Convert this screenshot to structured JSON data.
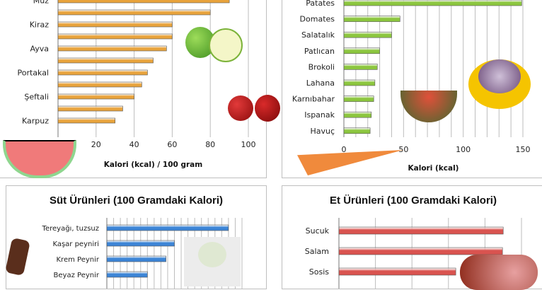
{
  "chart_data": [
    {
      "type": "bar",
      "orientation": "horizontal",
      "categories": [
        "Muz",
        "",
        "Kiraz",
        "",
        "Ayva",
        "",
        "Portakal",
        "",
        "Şeftali",
        "",
        "Karpuz"
      ],
      "values": [
        90,
        80,
        60,
        60,
        57,
        50,
        47,
        44,
        40,
        34,
        30
      ],
      "xlabel": "Kalori (kcal)  / 100 gram",
      "xlim": [
        0,
        100
      ],
      "xticks": [
        "20",
        "40",
        "60",
        "80",
        "100"
      ],
      "grid": true,
      "color": "#e8a33c"
    },
    {
      "type": "bar",
      "orientation": "horizontal",
      "categories": [
        "Patates",
        "Domates",
        "Salatalık",
        "Patlıcan",
        "Brokoli",
        "Lahana",
        "Karnıbahar",
        "Ispanak",
        "Havuç"
      ],
      "values": [
        149,
        47,
        40,
        30,
        28,
        26,
        25,
        23,
        22
      ],
      "xlabel": "Kalori (kcal)",
      "xlim": [
        0,
        150
      ],
      "xticks": [
        "0",
        "50",
        "100",
        "150"
      ],
      "grid": true,
      "color": "#8cc63f"
    },
    {
      "type": "bar",
      "orientation": "horizontal",
      "title": "Süt Ürünleri (100 Gramdaki Kalori)",
      "categories": [
        "Tereyağı, tuzsuz",
        "Kaşar peyniri",
        "Krem Peynir",
        "Beyaz Peynir"
      ],
      "values": [
        720,
        400,
        350,
        240
      ],
      "xlim": [
        0,
        800
      ],
      "grid": true,
      "color": "#3d85d6"
    },
    {
      "type": "bar",
      "orientation": "horizontal",
      "title": "Et Ürünleri (100 Gramdaki Kalori)",
      "categories": [
        "Sucuk",
        "Salam",
        "Sosis"
      ],
      "values": [
        450,
        448,
        320
      ],
      "xlim": [
        0,
        500
      ],
      "grid": true,
      "color": "#d9534f"
    }
  ]
}
